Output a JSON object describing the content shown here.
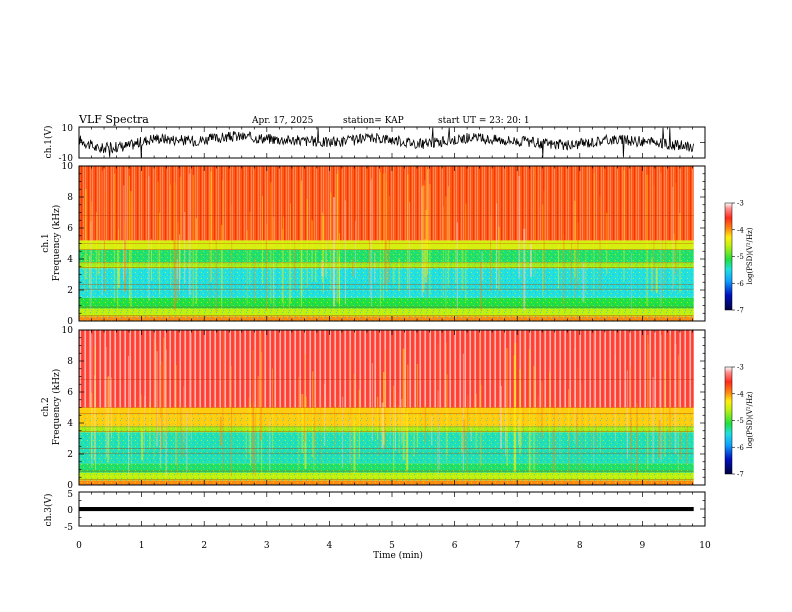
{
  "header": {
    "title": "VLF Spectra",
    "date": "Apr. 17, 2025",
    "station": "station= KAP",
    "start": "start  UT =  23: 20: 1"
  },
  "chart_data": [
    {
      "type": "line",
      "id": "ch1-waveform",
      "ylabel": "ch.1(V)",
      "ylim": [
        -10,
        10
      ],
      "ytick_labels": [
        "10",
        "-10"
      ],
      "xlim": [
        0,
        10
      ],
      "x_end": 9.82,
      "description_points": [
        [
          0,
          2
        ],
        [
          0.3,
          -4
        ],
        [
          0.8,
          -2
        ],
        [
          1.2,
          3
        ],
        [
          1.8,
          1
        ],
        [
          2.5,
          4
        ],
        [
          3.2,
          2
        ],
        [
          4,
          0
        ],
        [
          4.8,
          3
        ],
        [
          5.5,
          -1
        ],
        [
          6.2,
          3
        ],
        [
          7,
          1
        ],
        [
          7.8,
          -2
        ],
        [
          8.5,
          2
        ],
        [
          9.2,
          0
        ],
        [
          9.8,
          -3
        ]
      ],
      "color": "#000000"
    },
    {
      "type": "heatmap",
      "id": "ch1-spectrogram",
      "ylabel": "ch.1\nFrequency (kHz)",
      "ylabel_line1": "ch.1",
      "ylabel_line2": "Frequency (kHz)",
      "ylim": [
        0,
        10
      ],
      "ytick_labels": [
        "0",
        "2",
        "4",
        "6",
        "8",
        "10"
      ],
      "xlim": [
        0,
        10
      ],
      "x_end": 9.82,
      "color_scale": {
        "label": "log(PSD)(V²/Hz)",
        "range": [
          -7,
          -3
        ],
        "tick_labels": [
          "-3",
          "-4",
          "-5",
          "-6",
          "-7"
        ]
      },
      "bands_khz": [
        {
          "from": 0.0,
          "to": 0.3,
          "log_psd": -4.0
        },
        {
          "from": 0.3,
          "to": 0.8,
          "log_psd": -4.6
        },
        {
          "from": 0.8,
          "to": 1.5,
          "log_psd": -5.1
        },
        {
          "from": 1.5,
          "to": 3.4,
          "log_psd": -5.5
        },
        {
          "from": 3.4,
          "to": 3.8,
          "log_psd": -4.7
        },
        {
          "from": 3.8,
          "to": 4.6,
          "log_psd": -5.2
        },
        {
          "from": 4.6,
          "to": 5.2,
          "log_psd": -4.5
        },
        {
          "from": 5.2,
          "to": 10.0,
          "log_psd": -3.8
        }
      ]
    },
    {
      "type": "heatmap",
      "id": "ch2-spectrogram",
      "ylabel_line1": "ch.2",
      "ylabel_line2": "Frequency (kHz)",
      "ylim": [
        0,
        10
      ],
      "ytick_labels": [
        "0",
        "2",
        "4",
        "6",
        "8",
        "10"
      ],
      "xlim": [
        0,
        10
      ],
      "x_end": 9.82,
      "color_scale": {
        "label": "log(PSD)(V²/Hz)",
        "range": [
          -7,
          -3
        ],
        "tick_labels": [
          "-3",
          "-4",
          "-5",
          "-6",
          "-7"
        ]
      },
      "bands_khz": [
        {
          "from": 0.0,
          "to": 0.3,
          "log_psd": -4.0
        },
        {
          "from": 0.3,
          "to": 0.8,
          "log_psd": -4.6
        },
        {
          "from": 0.8,
          "to": 1.4,
          "log_psd": -5.2
        },
        {
          "from": 1.4,
          "to": 3.4,
          "log_psd": -5.4
        },
        {
          "from": 3.4,
          "to": 3.8,
          "log_psd": -4.7
        },
        {
          "from": 3.8,
          "to": 5.0,
          "log_psd": -4.2
        },
        {
          "from": 5.0,
          "to": 10.0,
          "log_psd": -3.5
        }
      ]
    },
    {
      "type": "line",
      "id": "ch3-waveform",
      "ylabel": "ch.3(V)",
      "ylim": [
        -5,
        5
      ],
      "ytick_labels": [
        "5",
        "0",
        "-5"
      ],
      "xlim": [
        0,
        10
      ],
      "x_end": 9.82,
      "band": [
        -0.6,
        0.6
      ],
      "color": "#000000"
    }
  ],
  "xaxis": {
    "label": "Time (min)",
    "tick_labels": [
      "0",
      "1",
      "2",
      "3",
      "4",
      "5",
      "6",
      "7",
      "8",
      "9",
      "10"
    ]
  },
  "colors": {
    "red": "#ff2a1a",
    "orange": "#ff8a10",
    "yellow": "#ffee10",
    "green": "#20e040",
    "cyan": "#30d8d8",
    "blue": "#1030ff",
    "navy": "#000050"
  }
}
